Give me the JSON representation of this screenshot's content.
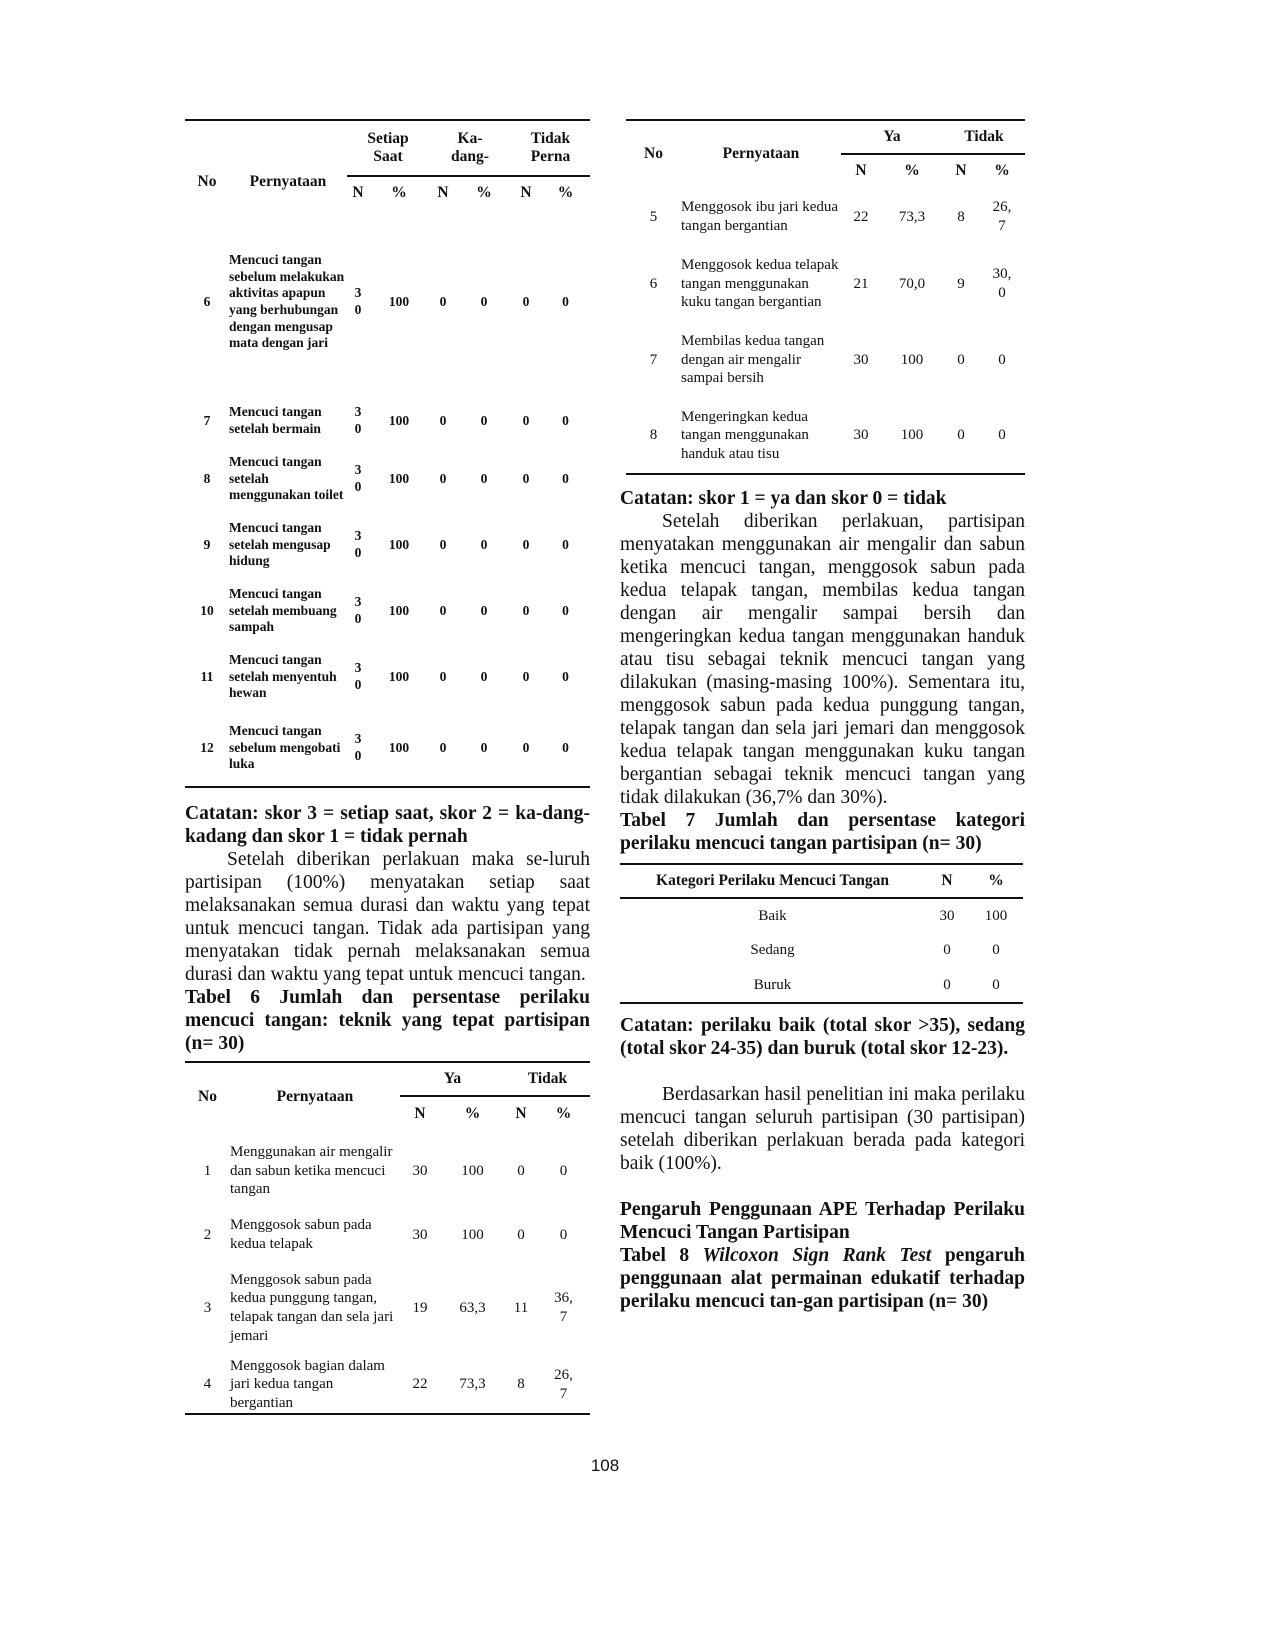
{
  "table5": {
    "headers": {
      "no": "No",
      "stmt": "Pernyataan",
      "g1": "Setiap\nSaat",
      "g2": "Ka-\ndang-",
      "g3": "Tidak\nPerna",
      "n": "N",
      "pct": "%"
    },
    "rows": [
      {
        "no": "6",
        "stmt": "Mencuci tangan sebelum melakukan aktivitas apapun yang berhubungan dengan mengusap mata dengan jari",
        "v": [
          "3\n0",
          "100",
          "0",
          "0",
          "0",
          "0"
        ]
      },
      {
        "no": "7",
        "stmt": "Mencuci tangan setelah bermain",
        "v": [
          "3\n0",
          "100",
          "0",
          "0",
          "0",
          "0"
        ]
      },
      {
        "no": "8",
        "stmt": "Mencuci tangan setelah menggunakan toilet",
        "v": [
          "3\n0",
          "100",
          "0",
          "0",
          "0",
          "0"
        ]
      },
      {
        "no": "9",
        "stmt": "Mencuci tangan setelah mengusap hidung",
        "v": [
          "3\n0",
          "100",
          "0",
          "0",
          "0",
          "0"
        ]
      },
      {
        "no": "10",
        "stmt": "Mencuci tangan setelah membuang sampah",
        "v": [
          "3\n0",
          "100",
          "0",
          "0",
          "0",
          "0"
        ]
      },
      {
        "no": "11",
        "stmt": "Mencuci tangan setelah menyentuh hewan",
        "v": [
          "3\n0",
          "100",
          "0",
          "0",
          "0",
          "0"
        ]
      },
      {
        "no": "12",
        "stmt": "Mencuci tangan sebelum mengobati luka",
        "v": [
          "3\n0",
          "100",
          "0",
          "0",
          "0",
          "0"
        ]
      }
    ]
  },
  "left_text": {
    "note5": "Catatan: skor 3 = setiap saat, skor 2 = ka-dang-kadang dan skor 1 = tidak pernah",
    "para1": "Setelah diberikan perlakuan maka se-luruh partisipan (100%) menyatakan setiap saat melaksanakan semua durasi dan waktu yang tepat untuk mencuci tangan. Tidak ada partisipan yang menyatakan tidak pernah melaksanakan semua durasi dan waktu yang tepat untuk mencuci tangan.",
    "table6_caption": "Tabel 6 Jumlah dan persentase perilaku mencuci tangan: teknik yang tepat partisipan (n= 30)"
  },
  "table6": {
    "headers": {
      "no": "No",
      "stmt": "Pernyataan",
      "ya": "Ya",
      "tidak": "Tidak",
      "n": "N",
      "pct": "%"
    },
    "rows_left": [
      {
        "no": "1",
        "stmt": "Menggunakan air mengalir dan sabun ketika mencuci tangan",
        "v": [
          "30",
          "100",
          "0",
          "0"
        ]
      },
      {
        "no": "2",
        "stmt": "Menggosok sabun pada kedua telapak",
        "v": [
          "30",
          "100",
          "0",
          "0"
        ]
      },
      {
        "no": "3",
        "stmt": "Menggosok sabun pada kedua punggung tangan, telapak tangan dan sela jari jemari",
        "v": [
          "19",
          "63,3",
          "11",
          "36,\n7"
        ]
      },
      {
        "no": "4",
        "stmt": "Menggosok bagian dalam jari kedua tangan bergantian",
        "v": [
          "22",
          "73,3",
          "8",
          "26,\n7"
        ]
      }
    ],
    "rows_right": [
      {
        "no": "5",
        "stmt": "Menggosok ibu jari kedua tangan bergantian",
        "v": [
          "22",
          "73,3",
          "8",
          "26,\n7"
        ]
      },
      {
        "no": "6",
        "stmt": "Menggosok kedua telapak tangan menggunakan kuku tangan bergantian",
        "v": [
          "21",
          "70,0",
          "9",
          "30,\n0"
        ]
      },
      {
        "no": "7",
        "stmt": "Membilas kedua tangan dengan air mengalir sampai bersih",
        "v": [
          "30",
          "100",
          "0",
          "0"
        ]
      },
      {
        "no": "8",
        "stmt": "Mengeringkan kedua tangan menggunakan handuk atau tisu",
        "v": [
          "30",
          "100",
          "0",
          "0"
        ]
      }
    ]
  },
  "right_text": {
    "note6": "Catatan: skor 1 = ya dan skor 0 = tidak",
    "para2": "Setelah diberikan perlakuan, partisipan menyatakan menggunakan air mengalir dan sabun ketika mencuci tangan, menggosok sabun pada kedua telapak tangan, membilas kedua tangan dengan air mengalir sampai bersih dan mengeringkan kedua tangan menggunakan handuk atau tisu sebagai teknik mencuci tangan yang dilakukan (masing-masing 100%). Sementara itu, menggosok sabun pada kedua punggung tangan, telapak tangan dan sela jari jemari dan menggosok kedua telapak tangan menggunakan kuku tangan bergantian sebagai teknik mencuci tangan yang tidak dilakukan (36,7% dan 30%).",
    "table7_caption": "Tabel 7 Jumlah dan persentase kategori perilaku mencuci tangan partisipan (n= 30)",
    "note7": "Catatan: perilaku baik (total skor >35), sedang (total skor 24-35) dan buruk (total skor 12-23).",
    "para3": "Berdasarkan hasil penelitian ini maka perilaku mencuci tangan seluruh partisipan (30 partisipan) setelah diberikan perlakuan berada pada kategori baik (100%).",
    "heading": "Pengaruh Penggunaan APE Terhadap Perilaku Mencuci Tangan Partisipan",
    "table8_caption_prefix": "Tabel 8",
    "table8_caption_italic": "Wilcoxon Sign Rank Test",
    "table8_caption_rest": "pengaruh penggunaan alat permainan edukatif terhadap perilaku mencuci tan-gan partisipan (n= 30)"
  },
  "table7": {
    "headers": {
      "cat": "Kategori Perilaku Mencuci Tangan",
      "n": "N",
      "pct": "%"
    },
    "rows": [
      {
        "cat": "Baik",
        "n": "30",
        "pct": "100"
      },
      {
        "cat": "Sedang",
        "n": "0",
        "pct": "0"
      },
      {
        "cat": "Buruk",
        "n": "0",
        "pct": "0"
      }
    ]
  },
  "page_number": "108"
}
